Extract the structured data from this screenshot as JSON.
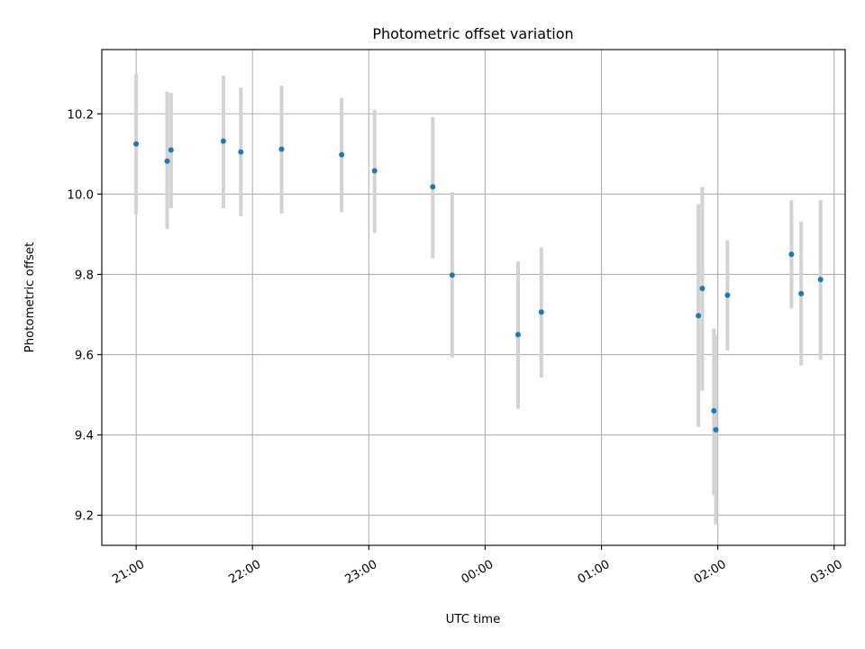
{
  "chart_data": {
    "type": "scatter",
    "title": "Photometric offset variation",
    "xlabel": "UTC time",
    "ylabel": "Photometric offset",
    "grid": true,
    "colors": {
      "points": "#1f77b4",
      "errorbars": "#d3d3d3",
      "grid": "#b0b0b0"
    },
    "x_ticks": [
      {
        "label": "21:00",
        "min": 0
      },
      {
        "label": "22:00",
        "min": 60
      },
      {
        "label": "23:00",
        "min": 120
      },
      {
        "label": "00:00",
        "min": 180
      },
      {
        "label": "01:00",
        "min": 240
      },
      {
        "label": "02:00",
        "min": 300
      },
      {
        "label": "03:00",
        "min": 360
      }
    ],
    "xlim_min": [
      -17.7,
      365.7
    ],
    "ylim": [
      9.125,
      10.36
    ],
    "y_ticks": [
      "9.2",
      "9.4",
      "9.6",
      "9.8",
      "10.0",
      "10.2"
    ],
    "points": [
      {
        "t": 0,
        "y": 10.125,
        "lo": 9.95,
        "hi": 10.3
      },
      {
        "t": 16,
        "y": 10.082,
        "lo": 9.913,
        "hi": 10.255
      },
      {
        "t": 18,
        "y": 10.11,
        "lo": 9.965,
        "hi": 10.252
      },
      {
        "t": 45,
        "y": 10.132,
        "lo": 9.965,
        "hi": 10.295
      },
      {
        "t": 54,
        "y": 10.105,
        "lo": 9.945,
        "hi": 10.265
      },
      {
        "t": 75,
        "y": 10.112,
        "lo": 9.952,
        "hi": 10.27
      },
      {
        "t": 106,
        "y": 10.098,
        "lo": 9.955,
        "hi": 10.24
      },
      {
        "t": 123,
        "y": 10.058,
        "lo": 9.903,
        "hi": 10.21
      },
      {
        "t": 153,
        "y": 10.018,
        "lo": 9.84,
        "hi": 10.192
      },
      {
        "t": 163,
        "y": 9.798,
        "lo": 9.593,
        "hi": 10.005
      },
      {
        "t": 197,
        "y": 9.65,
        "lo": 9.465,
        "hi": 9.832
      },
      {
        "t": 209,
        "y": 9.706,
        "lo": 9.543,
        "hi": 9.867
      },
      {
        "t": 290,
        "y": 9.697,
        "lo": 9.42,
        "hi": 9.975
      },
      {
        "t": 292,
        "y": 9.765,
        "lo": 9.51,
        "hi": 10.018
      },
      {
        "t": 298,
        "y": 9.46,
        "lo": 9.25,
        "hi": 9.665
      },
      {
        "t": 299,
        "y": 9.413,
        "lo": 9.177,
        "hi": 9.65
      },
      {
        "t": 305,
        "y": 9.748,
        "lo": 9.61,
        "hi": 9.885
      },
      {
        "t": 338,
        "y": 9.85,
        "lo": 9.715,
        "hi": 9.985
      },
      {
        "t": 343,
        "y": 9.752,
        "lo": 9.573,
        "hi": 9.932
      },
      {
        "t": 353,
        "y": 9.787,
        "lo": 9.587,
        "hi": 9.985
      }
    ]
  }
}
